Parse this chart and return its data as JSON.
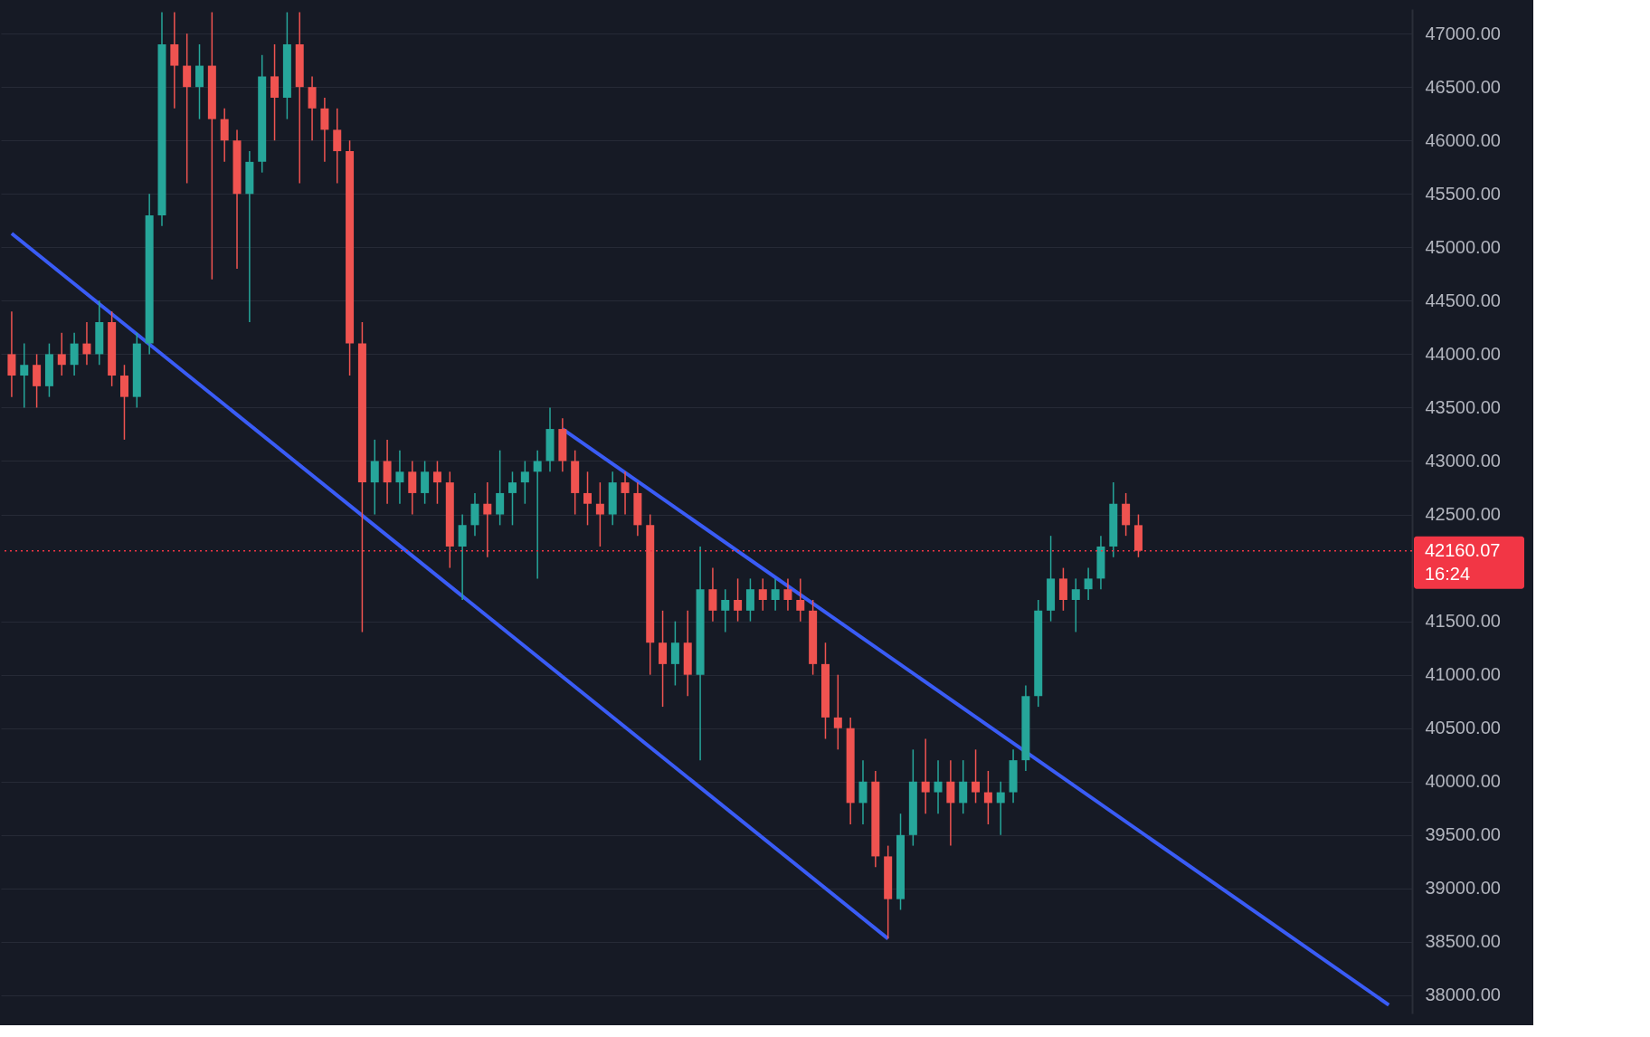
{
  "chart_data": {
    "type": "candlestick",
    "categories": [
      null,
      null,
      null,
      null,
      null,
      null,
      null,
      null,
      null,
      null,
      null,
      null,
      null,
      null,
      null,
      null,
      null,
      null,
      null,
      null,
      null,
      null,
      null,
      null,
      null,
      null,
      null,
      null,
      null,
      null,
      null,
      null,
      null,
      null,
      null,
      null,
      null,
      null,
      null,
      null,
      null,
      null,
      null,
      null,
      null,
      null,
      null,
      null,
      null,
      null,
      null,
      null,
      null,
      null,
      null,
      null,
      null,
      null,
      null,
      null,
      null,
      null,
      null,
      null,
      null,
      null,
      null,
      null,
      null,
      null,
      null,
      null,
      null,
      null,
      null,
      null,
      null,
      null,
      null,
      null,
      null,
      null,
      null,
      null,
      null,
      null,
      null,
      null,
      null,
      null,
      null,
      null,
      null,
      null,
      null,
      null,
      null,
      null,
      null,
      null,
      null,
      null,
      null,
      null,
      null,
      null,
      null,
      null,
      null,
      null,
      null,
      null
    ],
    "ohlc": [
      [
        44000,
        44400,
        43600,
        43800
      ],
      [
        43800,
        44100,
        43500,
        43900
      ],
      [
        43900,
        44000,
        43500,
        43700
      ],
      [
        43700,
        44100,
        43600,
        44000
      ],
      [
        44000,
        44200,
        43800,
        43900
      ],
      [
        43900,
        44200,
        43800,
        44100
      ],
      [
        44100,
        44300,
        43900,
        44000
      ],
      [
        44000,
        44500,
        43900,
        44300
      ],
      [
        44300,
        44400,
        43700,
        43800
      ],
      [
        43800,
        43900,
        43200,
        43600
      ],
      [
        43600,
        44200,
        43500,
        44100
      ],
      [
        44100,
        45500,
        44000,
        45300
      ],
      [
        45300,
        47200,
        45200,
        46900
      ],
      [
        46900,
        47200,
        46300,
        46700
      ],
      [
        46700,
        47000,
        45600,
        46500
      ],
      [
        46500,
        46900,
        46200,
        46700
      ],
      [
        46700,
        47200,
        44700,
        46200
      ],
      [
        46200,
        46300,
        45800,
        46000
      ],
      [
        46000,
        46100,
        44800,
        45500
      ],
      [
        45500,
        45900,
        44300,
        45800
      ],
      [
        45800,
        46800,
        45700,
        46600
      ],
      [
        46600,
        46900,
        46000,
        46400
      ],
      [
        46400,
        47200,
        46200,
        46900
      ],
      [
        46900,
        47200,
        45600,
        46500
      ],
      [
        46500,
        46600,
        46000,
        46300
      ],
      [
        46300,
        46400,
        45800,
        46100
      ],
      [
        46100,
        46300,
        45600,
        45900
      ],
      [
        45900,
        46000,
        43800,
        44100
      ],
      [
        44100,
        44300,
        41400,
        42800
      ],
      [
        42800,
        43200,
        42500,
        43000
      ],
      [
        43000,
        43200,
        42600,
        42800
      ],
      [
        42800,
        43100,
        42600,
        42900
      ],
      [
        42900,
        43000,
        42500,
        42700
      ],
      [
        42700,
        43000,
        42600,
        42900
      ],
      [
        42900,
        43000,
        42600,
        42800
      ],
      [
        42800,
        42900,
        42000,
        42200
      ],
      [
        42200,
        42500,
        41700,
        42400
      ],
      [
        42400,
        42700,
        42300,
        42600
      ],
      [
        42600,
        42800,
        42100,
        42500
      ],
      [
        42500,
        43100,
        42400,
        42700
      ],
      [
        42700,
        42900,
        42400,
        42800
      ],
      [
        42800,
        43000,
        42600,
        42900
      ],
      [
        42900,
        43100,
        41900,
        43000
      ],
      [
        43000,
        43500,
        42900,
        43300
      ],
      [
        43300,
        43400,
        42900,
        43000
      ],
      [
        43000,
        43100,
        42500,
        42700
      ],
      [
        42700,
        42900,
        42400,
        42600
      ],
      [
        42600,
        42800,
        42200,
        42500
      ],
      [
        42500,
        42900,
        42400,
        42800
      ],
      [
        42800,
        42900,
        42500,
        42700
      ],
      [
        42700,
        42800,
        42300,
        42400
      ],
      [
        42400,
        42500,
        41000,
        41300
      ],
      [
        41300,
        41600,
        40700,
        41100
      ],
      [
        41100,
        41500,
        40900,
        41300
      ],
      [
        41300,
        41600,
        40800,
        41000
      ],
      [
        41000,
        42200,
        40200,
        41800
      ],
      [
        41800,
        42000,
        41500,
        41600
      ],
      [
        41600,
        41800,
        41400,
        41700
      ],
      [
        41700,
        41900,
        41500,
        41600
      ],
      [
        41600,
        41900,
        41500,
        41800
      ],
      [
        41800,
        41900,
        41600,
        41700
      ],
      [
        41700,
        41900,
        41600,
        41800
      ],
      [
        41800,
        41900,
        41600,
        41700
      ],
      [
        41700,
        41900,
        41500,
        41600
      ],
      [
        41600,
        41700,
        41000,
        41100
      ],
      [
        41100,
        41300,
        40400,
        40600
      ],
      [
        40600,
        41000,
        40300,
        40500
      ],
      [
        40500,
        40600,
        39600,
        39800
      ],
      [
        39800,
        40200,
        39600,
        40000
      ],
      [
        40000,
        40100,
        39200,
        39300
      ],
      [
        39300,
        39400,
        38530,
        38900
      ],
      [
        38900,
        39700,
        38800,
        39500
      ],
      [
        39500,
        40300,
        39400,
        40000
      ],
      [
        40000,
        40400,
        39700,
        39900
      ],
      [
        39900,
        40200,
        39700,
        40000
      ],
      [
        40000,
        40200,
        39400,
        39800
      ],
      [
        39800,
        40200,
        39700,
        40000
      ],
      [
        40000,
        40300,
        39800,
        39900
      ],
      [
        39900,
        40100,
        39600,
        39800
      ],
      [
        39800,
        40000,
        39500,
        39900
      ],
      [
        39900,
        40300,
        39800,
        40200
      ],
      [
        40200,
        40900,
        40100,
        40800
      ],
      [
        40800,
        41700,
        40700,
        41600
      ],
      [
        41600,
        42300,
        41500,
        41900
      ],
      [
        41900,
        42000,
        41600,
        41700
      ],
      [
        41700,
        41900,
        41400,
        41800
      ],
      [
        41800,
        42000,
        41700,
        41900
      ],
      [
        41900,
        42300,
        41800,
        42200
      ],
      [
        42200,
        42800,
        42100,
        42600
      ],
      [
        42600,
        42700,
        42300,
        42400
      ],
      [
        42400,
        42500,
        42100,
        42160.07
      ],
      null,
      null,
      null,
      null,
      null,
      null,
      null,
      null,
      null,
      null,
      null,
      null,
      null,
      null,
      null,
      null,
      null,
      null,
      null,
      null,
      null
    ],
    "series": [
      {
        "type": "line",
        "color": "#3a5cf6",
        "values": [
          45130,
          null,
          null,
          null,
          null,
          null,
          null,
          null,
          null,
          null,
          null,
          null,
          null,
          null,
          null,
          null,
          null,
          null,
          null,
          null,
          null,
          null,
          null,
          null,
          null,
          null,
          null,
          null,
          null,
          null,
          null,
          null,
          null,
          null,
          null,
          null,
          null,
          null,
          null,
          null,
          null,
          null,
          null,
          null,
          null,
          null,
          null,
          null,
          null,
          null,
          null,
          null,
          null,
          null,
          null,
          null,
          null,
          null,
          null,
          null,
          null,
          null,
          null,
          null,
          null,
          null,
          null,
          null,
          null,
          null,
          38530,
          null,
          null,
          null,
          null,
          null,
          null,
          null,
          null,
          null,
          null,
          null,
          null,
          null,
          null,
          null,
          null,
          null,
          null,
          null,
          null,
          null,
          null,
          null,
          null,
          null,
          null,
          null,
          null,
          null,
          null,
          null,
          null,
          null,
          null,
          null,
          null,
          null,
          null,
          null,
          null,
          null
        ]
      },
      {
        "type": "line",
        "color": "#3a5cf6",
        "values": [
          null,
          null,
          null,
          null,
          null,
          null,
          null,
          null,
          null,
          null,
          null,
          null,
          null,
          null,
          null,
          null,
          null,
          null,
          null,
          null,
          null,
          null,
          null,
          null,
          null,
          null,
          null,
          null,
          null,
          null,
          null,
          null,
          null,
          null,
          null,
          null,
          null,
          null,
          null,
          null,
          null,
          null,
          null,
          null,
          43300,
          null,
          null,
          null,
          null,
          null,
          null,
          null,
          null,
          null,
          null,
          null,
          null,
          null,
          null,
          null,
          null,
          null,
          null,
          null,
          null,
          null,
          null,
          null,
          null,
          null,
          null,
          null,
          null,
          null,
          null,
          null,
          null,
          null,
          null,
          null,
          null,
          null,
          null,
          null,
          null,
          null,
          null,
          null,
          null,
          null,
          null,
          null,
          null,
          null,
          null,
          null,
          null,
          null,
          null,
          null,
          null,
          null,
          null,
          null,
          null,
          null,
          null,
          null,
          null,
          null,
          37910,
          null
        ]
      }
    ],
    "ref_lines": [
      {
        "axis": "y",
        "value": 42160.07,
        "label": "42160.07",
        "color": "#f23645",
        "line_style": "dotted"
      }
    ],
    "annotations": [
      "16:24"
    ],
    "ylim": [
      37830,
      47230
    ],
    "yticks": [
      {
        "value": 38000,
        "label": "38000.00"
      },
      {
        "value": 38500,
        "label": "38500.00"
      },
      {
        "value": 39000,
        "label": "39000.00"
      },
      {
        "value": 39500,
        "label": "39500.00"
      },
      {
        "value": 40000,
        "label": "40000.00"
      },
      {
        "value": 40500,
        "label": "40500.00"
      },
      {
        "value": 41000,
        "label": "41000.00"
      },
      {
        "value": 41500,
        "label": "41500.00"
      },
      {
        "value": 42500,
        "label": "42500.00"
      },
      {
        "value": 43000,
        "label": "43000.00"
      },
      {
        "value": 43500,
        "label": "43500.00"
      },
      {
        "value": 44000,
        "label": "44000.00"
      },
      {
        "value": 44500,
        "label": "44500.00"
      },
      {
        "value": 45000,
        "label": "45000.00"
      },
      {
        "value": 45500,
        "label": "45500.00"
      },
      {
        "value": 46000,
        "label": "46000.00"
      },
      {
        "value": 46500,
        "label": "46500.00"
      },
      {
        "value": 47000,
        "label": "47000.00"
      }
    ],
    "grid": "y",
    "tick_labels": "y"
  }
}
